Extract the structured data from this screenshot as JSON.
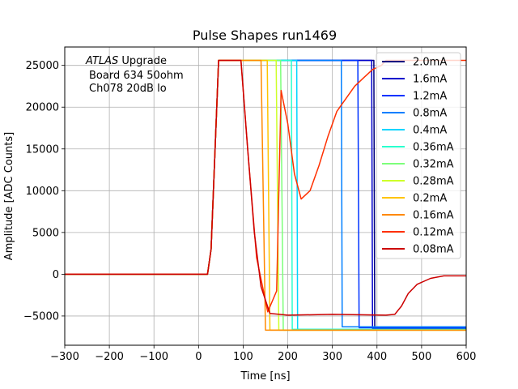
{
  "chart_data": {
    "type": "line",
    "title": "Pulse Shapes run1469",
    "xlabel": "Time [ns]",
    "ylabel": "Amplitude [ADC Counts]",
    "xlim": [
      -300,
      600
    ],
    "ylim": [
      -8500,
      27200
    ],
    "xticks": [
      -300,
      -200,
      -100,
      0,
      100,
      200,
      300,
      400,
      500,
      600
    ],
    "xtick_labels": [
      "−300",
      "−200",
      "−100",
      "0",
      "100",
      "200",
      "300",
      "400",
      "500",
      "600"
    ],
    "yticks": [
      -5000,
      0,
      5000,
      10000,
      15000,
      20000,
      25000
    ],
    "ytick_labels": [
      "−5000",
      "0",
      "5000",
      "10000",
      "15000",
      "20000",
      "25000"
    ],
    "grid": true,
    "legend_position": "top-right",
    "annotation": {
      "italic": "ATLAS",
      "line1_rest": " Upgrade",
      "line2": "Board 634 50ohm",
      "line3": "Ch078 20dB lo"
    },
    "series": [
      {
        "name": "2.0mA",
        "color": "#00007f",
        "x": [
          -300,
          20,
          28,
          45,
          80,
          360,
          380,
          393,
          395,
          600
        ],
        "y": [
          0,
          0,
          3000,
          25600,
          25600,
          25600,
          25600,
          25600,
          -6600,
          -6600
        ]
      },
      {
        "name": "1.6mA",
        "color": "#0000cc",
        "x": [
          -300,
          20,
          28,
          45,
          80,
          370,
          385,
          388,
          390,
          600
        ],
        "y": [
          0,
          0,
          3000,
          25600,
          25600,
          25600,
          25600,
          25600,
          -6500,
          -6500
        ]
      },
      {
        "name": "1.2mA",
        "color": "#0033ff",
        "x": [
          -300,
          20,
          28,
          45,
          80,
          340,
          355,
          357,
          360,
          600
        ],
        "y": [
          0,
          0,
          3000,
          25600,
          25600,
          25600,
          25600,
          25600,
          -6400,
          -6400
        ]
      },
      {
        "name": "0.8mA",
        "color": "#007fff",
        "x": [
          -300,
          20,
          28,
          45,
          80,
          300,
          318,
          320,
          322,
          600
        ],
        "y": [
          0,
          0,
          3000,
          25600,
          25600,
          25600,
          25600,
          25600,
          -6300,
          -6300
        ]
      },
      {
        "name": "0.4mA",
        "color": "#00d5ff",
        "x": [
          -300,
          20,
          28,
          45,
          80,
          205,
          218,
          220,
          222,
          600
        ],
        "y": [
          0,
          0,
          3000,
          25600,
          25600,
          25600,
          25600,
          25600,
          -6600,
          -6600
        ]
      },
      {
        "name": "0.36mA",
        "color": "#29ffce",
        "x": [
          -300,
          20,
          28,
          45,
          80,
          195,
          205,
          208,
          210,
          600
        ],
        "y": [
          0,
          0,
          3000,
          25600,
          25600,
          25600,
          25600,
          25600,
          -6600,
          -6600
        ]
      },
      {
        "name": "0.32mA",
        "color": "#7dff7a",
        "x": [
          -300,
          20,
          28,
          45,
          80,
          170,
          180,
          184,
          190,
          600
        ],
        "y": [
          0,
          0,
          3000,
          25600,
          25600,
          25600,
          25600,
          25600,
          -6700,
          -6700
        ]
      },
      {
        "name": "0.28mA",
        "color": "#ceff29",
        "x": [
          -300,
          20,
          28,
          45,
          80,
          160,
          170,
          174,
          180,
          600
        ],
        "y": [
          0,
          0,
          3000,
          25600,
          25600,
          25600,
          25600,
          25600,
          -6700,
          -6700
        ]
      },
      {
        "name": "0.2mA",
        "color": "#ffc400",
        "x": [
          -300,
          20,
          28,
          45,
          80,
          140,
          150,
          154,
          160,
          600
        ],
        "y": [
          0,
          0,
          3000,
          25600,
          25600,
          25600,
          25600,
          25600,
          -6700,
          -6700
        ]
      },
      {
        "name": "0.16mA",
        "color": "#ff8900",
        "x": [
          -300,
          20,
          28,
          45,
          80,
          125,
          135,
          140,
          150,
          600
        ],
        "y": [
          0,
          0,
          3000,
          25600,
          25600,
          25600,
          25600,
          25600,
          -6700,
          -6700
        ]
      },
      {
        "name": "0.12mA",
        "color": "#ff3000",
        "x": [
          -300,
          20,
          28,
          45,
          80,
          95,
          110,
          130,
          155,
          175,
          185,
          200,
          215,
          230,
          250,
          270,
          290,
          310,
          330,
          350,
          370,
          390,
          410,
          420,
          430,
          600
        ],
        "y": [
          0,
          0,
          3000,
          25600,
          25600,
          25600,
          15000,
          2000,
          -4500,
          -2000,
          22000,
          18000,
          12000,
          9000,
          10000,
          13000,
          16500,
          19500,
          21000,
          22500,
          23500,
          24500,
          25000,
          25600,
          25600,
          25600
        ]
      },
      {
        "name": "0.08mA",
        "color": "#cc0000",
        "x": [
          -300,
          20,
          28,
          45,
          80,
          95,
          110,
          125,
          140,
          160,
          200,
          300,
          420,
          440,
          455,
          470,
          490,
          520,
          550,
          600
        ],
        "y": [
          0,
          0,
          3000,
          25600,
          25600,
          25600,
          15000,
          5000,
          -1500,
          -4700,
          -4900,
          -4800,
          -4900,
          -4800,
          -3800,
          -2300,
          -1200,
          -500,
          -200,
          -200
        ]
      }
    ]
  }
}
